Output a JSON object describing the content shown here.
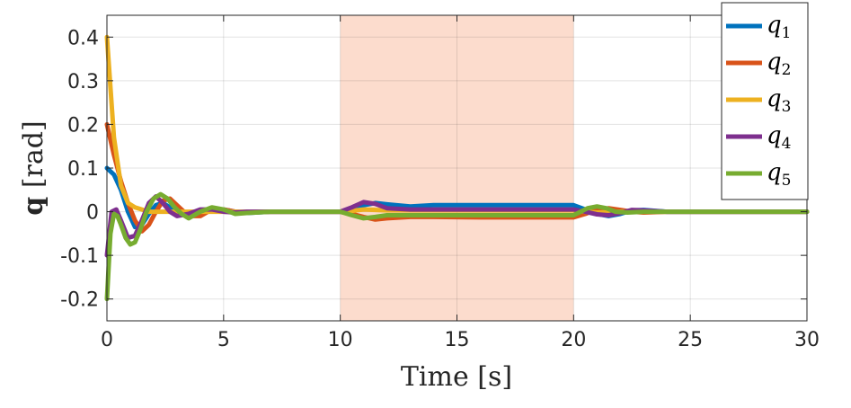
{
  "chart_data": {
    "type": "line",
    "title": "",
    "xlabel": "Time [s]",
    "ylabel_bold": "q",
    "ylabel_unit": "[rad]",
    "xlim": [
      0,
      30
    ],
    "ylim": [
      -0.25,
      0.45
    ],
    "xticks": [
      0,
      5,
      10,
      15,
      20,
      25,
      30
    ],
    "xtick_labels": [
      "0",
      "5",
      "10",
      "15",
      "20",
      "25",
      "30"
    ],
    "yticks": [
      -0.2,
      -0.1,
      0,
      0.1,
      0.2,
      0.3,
      0.4
    ],
    "ytick_labels": [
      "-0.2",
      "-0.1",
      "0",
      "0.1",
      "0.2",
      "0.3",
      "0.4"
    ],
    "grid": true,
    "legend_position": "top-right",
    "shaded_interval": {
      "x": [
        10,
        20
      ],
      "color": "#fcdccd"
    },
    "series": [
      {
        "name": "q",
        "subscript": "1",
        "color": "#0072BD",
        "x": [
          0,
          0.3,
          0.6,
          0.9,
          1.2,
          1.5,
          1.8,
          2.1,
          2.4,
          2.7,
          3.0,
          3.5,
          4.0,
          4.5,
          5.0,
          5.5,
          6.0,
          7.0,
          8.0,
          9.0,
          10.0,
          10.5,
          11.0,
          11.5,
          12.0,
          13.0,
          14.0,
          16.0,
          18.0,
          19.5,
          20.0,
          20.5,
          21.0,
          21.5,
          22.0,
          22.5,
          23.0,
          24.0,
          26.0,
          28.0,
          30.0
        ],
        "y": [
          0.1,
          0.085,
          0.05,
          0.0,
          -0.035,
          -0.03,
          -0.005,
          0.015,
          0.02,
          0.01,
          0.0,
          -0.01,
          -0.005,
          0.005,
          0.005,
          0.0,
          -0.003,
          0.0,
          0.0,
          0.0,
          0.0,
          0.005,
          0.015,
          0.02,
          0.017,
          0.012,
          0.015,
          0.015,
          0.015,
          0.015,
          0.015,
          0.005,
          -0.005,
          -0.01,
          -0.005,
          0.003,
          0.004,
          0.0,
          0.0,
          0.0,
          0.0
        ]
      },
      {
        "name": "q",
        "subscript": "2",
        "color": "#D95319",
        "x": [
          0,
          0.3,
          0.6,
          0.9,
          1.2,
          1.5,
          1.8,
          2.1,
          2.4,
          2.7,
          3.0,
          3.5,
          4.0,
          4.5,
          5.0,
          5.5,
          6.0,
          7.0,
          8.0,
          9.0,
          10.0,
          10.5,
          11.0,
          11.5,
          12.0,
          13.0,
          14.0,
          16.0,
          18.0,
          19.5,
          20.0,
          20.5,
          21.0,
          21.5,
          22.0,
          22.5,
          23.0,
          24.0,
          26.0,
          28.0,
          30.0
        ],
        "y": [
          0.2,
          0.13,
          0.07,
          0.02,
          -0.02,
          -0.045,
          -0.03,
          0.0,
          0.025,
          0.03,
          0.015,
          -0.01,
          -0.01,
          0.005,
          0.005,
          0.0,
          -0.002,
          0.0,
          0.0,
          0.0,
          0.0,
          -0.005,
          -0.012,
          -0.018,
          -0.015,
          -0.012,
          -0.012,
          -0.013,
          -0.013,
          -0.013,
          -0.013,
          -0.005,
          0.005,
          0.008,
          0.004,
          0.0,
          -0.002,
          0.0,
          0.0,
          0.0,
          0.0
        ]
      },
      {
        "name": "q",
        "subscript": "3",
        "color": "#EDB120",
        "x": [
          0,
          0.3,
          0.6,
          0.9,
          1.2,
          1.5,
          1.8,
          2.1,
          2.5,
          3.0,
          3.5,
          4.0,
          5.0,
          6.0,
          8.0,
          10.0,
          10.5,
          11.0,
          12.0,
          14.0,
          16.0,
          18.0,
          20.0,
          20.5,
          21.0,
          22.0,
          24.0,
          26.0,
          28.0,
          30.0
        ],
        "y": [
          0.4,
          0.17,
          0.06,
          0.02,
          0.01,
          0.005,
          0.0,
          0.0,
          0.0,
          0.0,
          0.0,
          0.0,
          0.0,
          0.0,
          0.0,
          0.0,
          0.002,
          0.005,
          0.003,
          0.003,
          0.003,
          0.003,
          0.003,
          0.0,
          -0.002,
          0.0,
          0.0,
          0.0,
          0.0,
          0.0
        ]
      },
      {
        "name": "q",
        "subscript": "4",
        "color": "#7E2F8E",
        "x": [
          0,
          0.2,
          0.4,
          0.6,
          0.9,
          1.2,
          1.5,
          1.8,
          2.1,
          2.4,
          2.7,
          3.0,
          3.5,
          4.0,
          4.5,
          5.0,
          5.5,
          6.0,
          7.0,
          8.0,
          9.0,
          10.0,
          10.5,
          11.0,
          11.5,
          12.0,
          13.0,
          14.0,
          16.0,
          18.0,
          20.0,
          20.5,
          21.0,
          21.5,
          22.0,
          22.5,
          23.0,
          24.0,
          26.0,
          28.0,
          30.0
        ],
        "y": [
          -0.1,
          0.0,
          0.005,
          -0.02,
          -0.06,
          -0.055,
          -0.02,
          0.02,
          0.035,
          0.02,
          0.0,
          -0.01,
          -0.005,
          0.005,
          0.005,
          0.0,
          -0.002,
          0.0,
          0.0,
          0.0,
          0.0,
          0.0,
          0.01,
          0.022,
          0.018,
          0.008,
          0.005,
          0.005,
          0.005,
          0.005,
          0.005,
          0.0,
          -0.006,
          -0.008,
          -0.003,
          0.004,
          0.003,
          0.0,
          0.0,
          0.0,
          0.0
        ]
      },
      {
        "name": "q",
        "subscript": "5",
        "color": "#77AC30",
        "x": [
          0,
          0.15,
          0.3,
          0.45,
          0.6,
          0.8,
          1.0,
          1.2,
          1.4,
          1.7,
          2.0,
          2.3,
          2.6,
          2.9,
          3.2,
          3.5,
          4.0,
          4.5,
          5.0,
          5.5,
          6.0,
          7.0,
          8.0,
          9.0,
          10.0,
          10.5,
          11.0,
          11.5,
          12.0,
          13.0,
          14.0,
          16.0,
          18.0,
          20.0,
          20.3,
          20.6,
          21.0,
          21.4,
          21.8,
          22.3,
          23.0,
          24.0,
          26.0,
          28.0,
          30.0
        ],
        "y": [
          -0.2,
          -0.05,
          -0.005,
          -0.01,
          -0.03,
          -0.06,
          -0.075,
          -0.07,
          -0.045,
          0.0,
          0.03,
          0.04,
          0.03,
          0.01,
          -0.005,
          -0.015,
          0.0,
          0.01,
          0.005,
          -0.005,
          -0.003,
          0.0,
          0.0,
          0.0,
          0.0,
          -0.008,
          -0.015,
          -0.012,
          -0.008,
          -0.008,
          -0.008,
          -0.008,
          -0.008,
          -0.008,
          0.0,
          0.008,
          0.012,
          0.008,
          0.0,
          -0.002,
          0.0,
          0.0,
          0.0,
          0.0,
          0.0
        ]
      }
    ]
  }
}
